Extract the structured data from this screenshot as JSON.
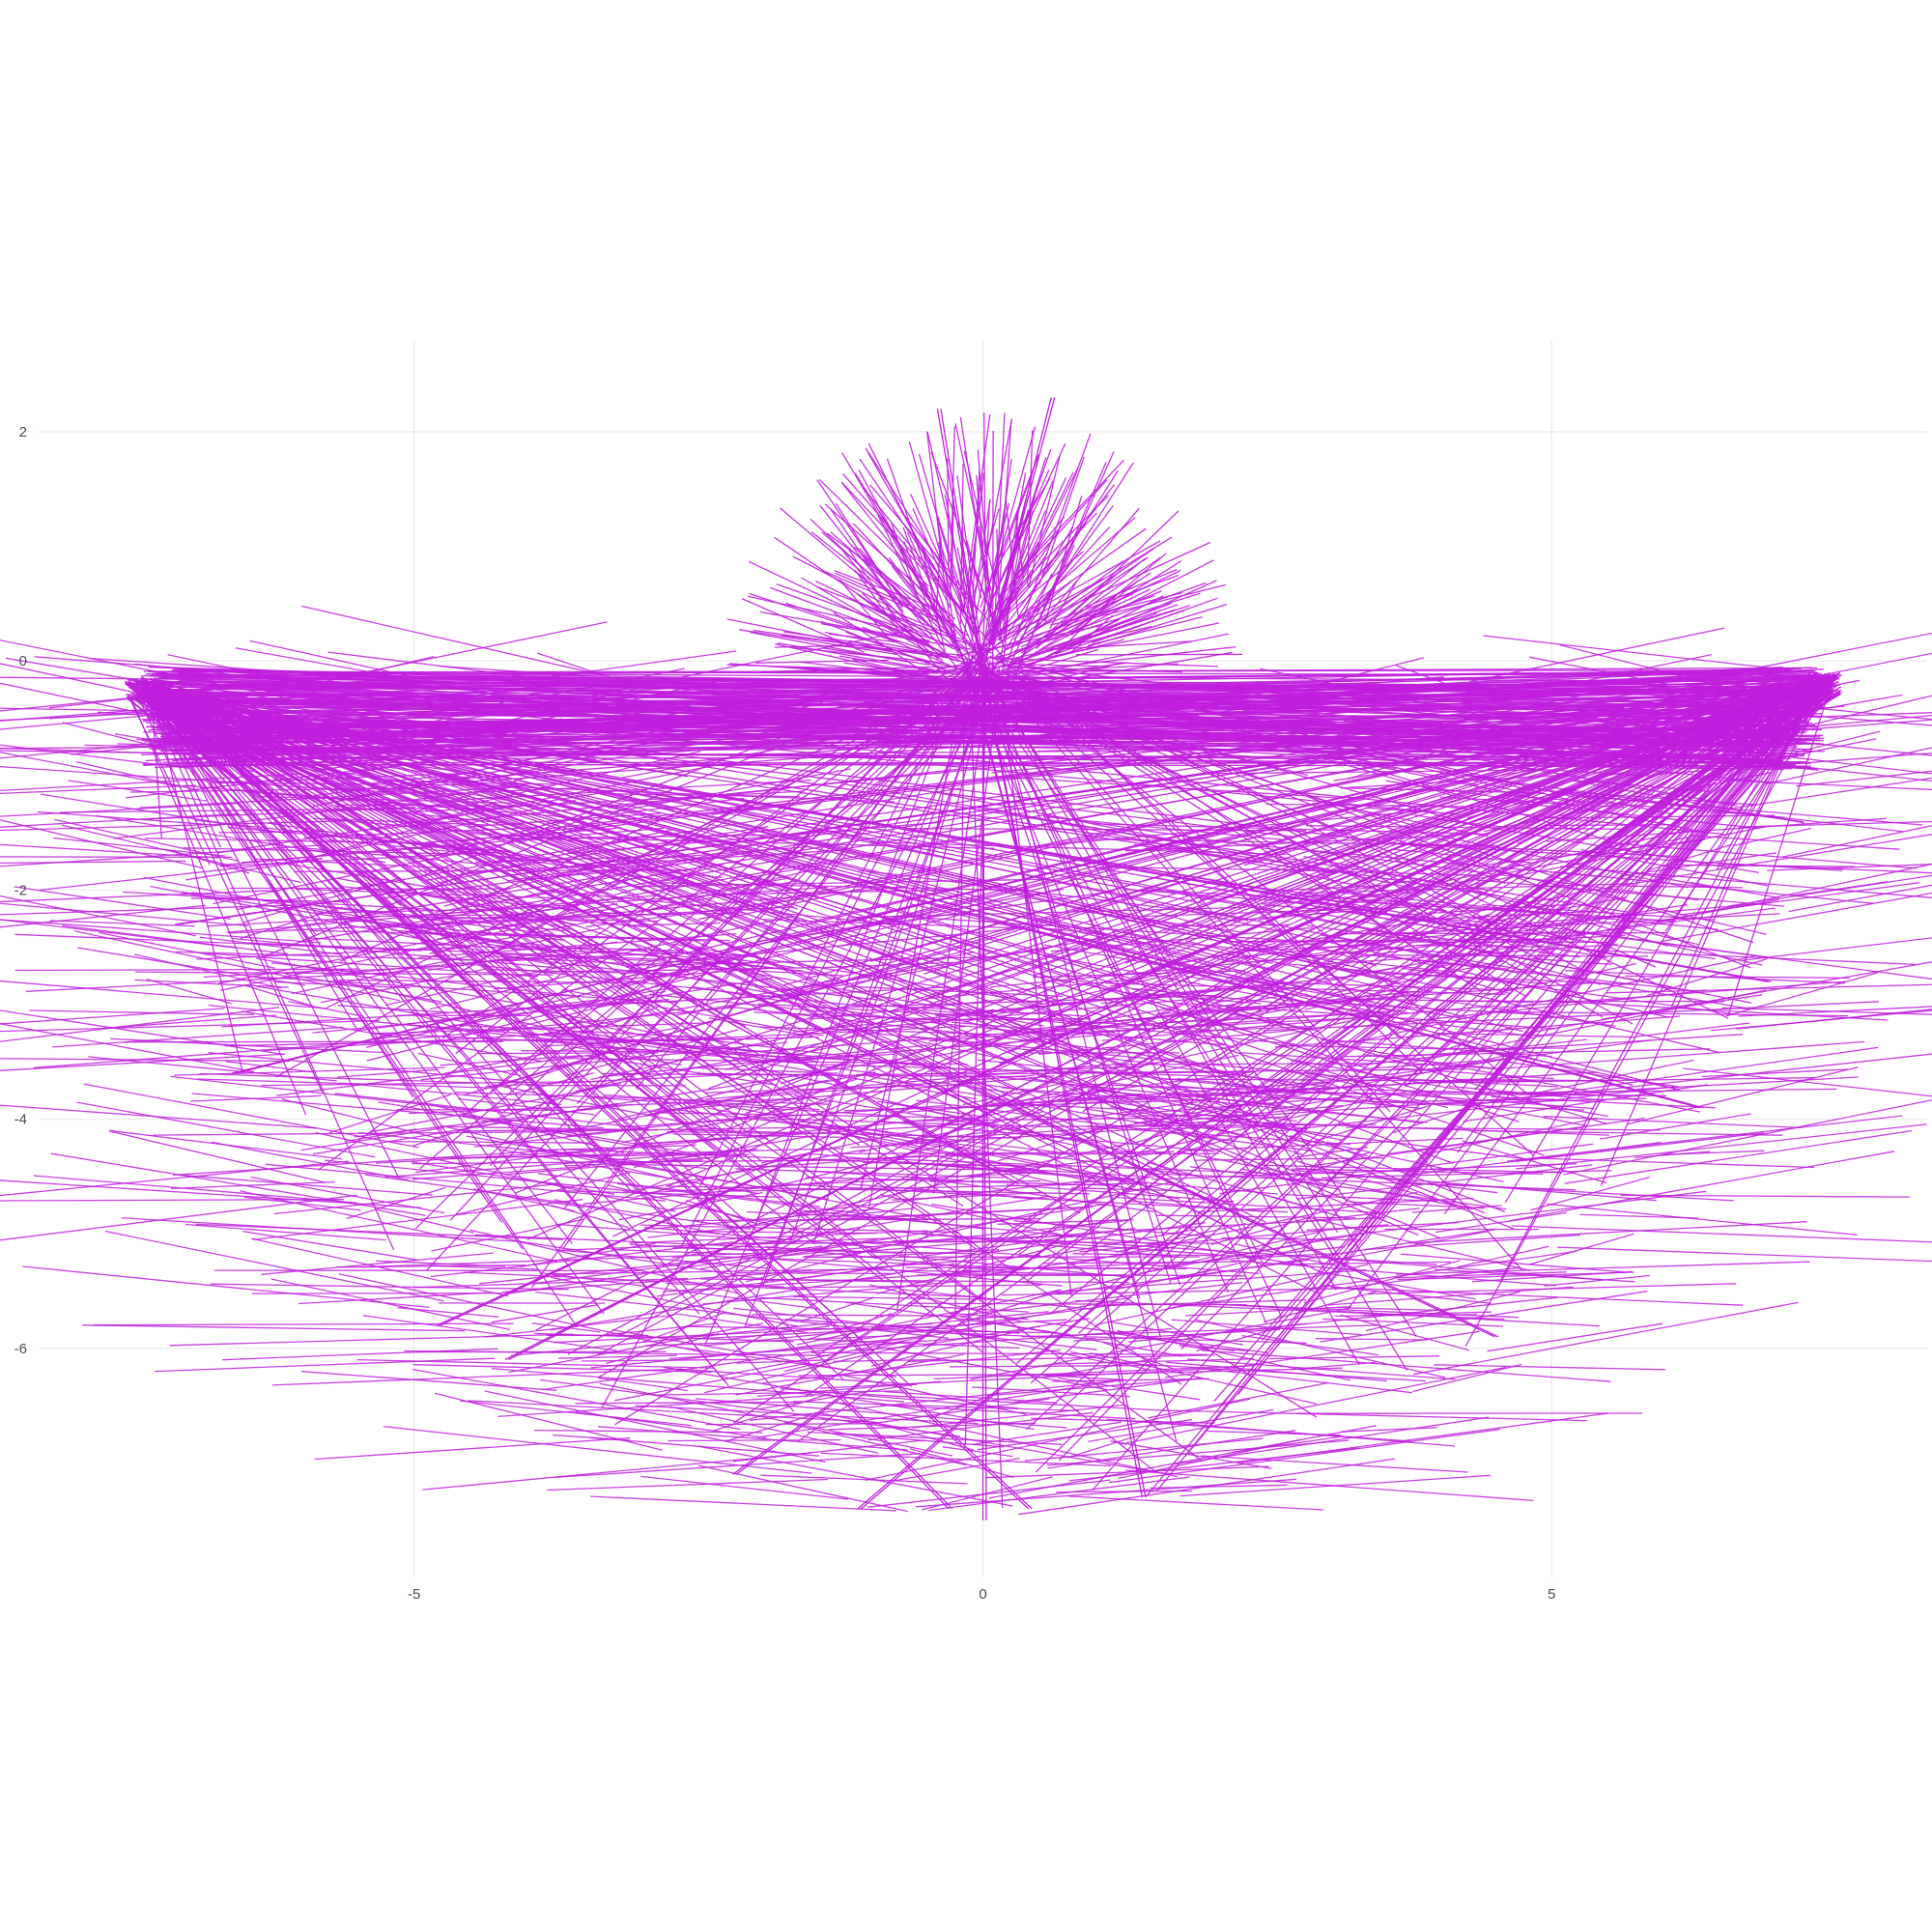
{
  "chart_data": {
    "type": "line",
    "title": "",
    "xlabel": "",
    "ylabel": "",
    "xlim": [
      -8.3,
      8.3
    ],
    "ylim": [
      -8.0,
      2.8
    ],
    "x_ticks": [
      -5,
      0,
      5
    ],
    "x_tick_labels": [
      "-5",
      "0",
      "5"
    ],
    "y_ticks": [
      -6,
      -4,
      -2,
      0,
      2
    ],
    "y_tick_labels": [
      "-6",
      "-4",
      "-2",
      "0",
      "2"
    ],
    "grid": true,
    "legend": "none",
    "line_color": "#c020dd",
    "background": "#ffffff",
    "segments_pattern": {
      "description_ref": "many straight segments radiating from central and side hubs",
      "hubs": [
        {
          "x": 0.0,
          "y": -0.1
        },
        {
          "x": -7.4,
          "y": -0.25
        },
        {
          "x": 7.4,
          "y": -0.2
        }
      ],
      "outer_envelope": "lower semicircle radius ~7.4 centered near (0,-0.1); upper fan radius ~2.3",
      "long_spokes": [
        {
          "x1": -7.4,
          "y1": -0.25,
          "x2": 7.4,
          "y2": -0.2
        },
        {
          "x1": -7.4,
          "y1": -0.15,
          "x2": 0.4,
          "y2": -7.4
        },
        {
          "x1": -7.4,
          "y1": -0.2,
          "x2": -0.3,
          "y2": -7.4
        },
        {
          "x1": -7.4,
          "y1": -0.3,
          "x2": 4.5,
          "y2": -5.9
        },
        {
          "x1": -7.4,
          "y1": -0.3,
          "x2": 6.3,
          "y2": -3.9
        },
        {
          "x1": -7.4,
          "y1": -0.3,
          "x2": 6.9,
          "y2": -2.8
        },
        {
          "x1": 7.4,
          "y1": -0.2,
          "x2": -4.2,
          "y2": -6.1
        },
        {
          "x1": 7.4,
          "y1": -0.2,
          "x2": -4.8,
          "y2": -5.8
        },
        {
          "x1": 7.4,
          "y1": -0.2,
          "x2": -6.6,
          "y2": -3.6
        },
        {
          "x1": 7.4,
          "y1": -0.2,
          "x2": -7.1,
          "y2": -2.3
        },
        {
          "x1": 7.4,
          "y1": -0.2,
          "x2": -2.2,
          "y2": -7.1
        },
        {
          "x1": 7.4,
          "y1": -0.2,
          "x2": -1.1,
          "y2": -7.4
        },
        {
          "x1": 0.0,
          "y1": -0.1,
          "x2": 0.0,
          "y2": -7.5
        },
        {
          "x1": 0.0,
          "y1": -0.1,
          "x2": 1.4,
          "y2": -7.3
        },
        {
          "x1": 0.0,
          "y1": -0.1,
          "x2": 0.6,
          "y2": 2.3
        },
        {
          "x1": 0.0,
          "y1": -0.1,
          "x2": -0.4,
          "y2": 2.2
        }
      ]
    }
  }
}
